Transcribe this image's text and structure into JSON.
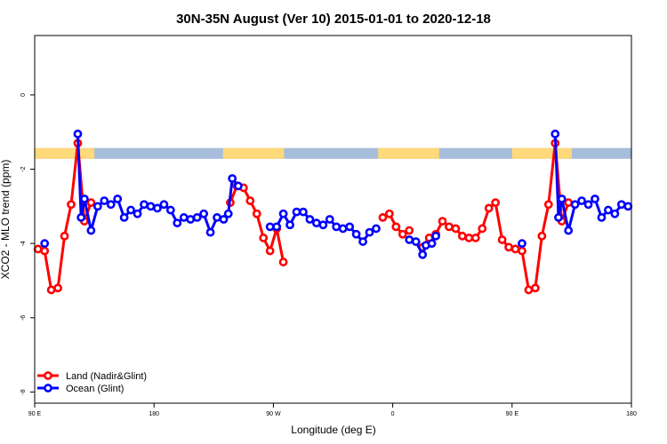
{
  "chart_data": {
    "type": "line",
    "title": "30N-35N August (Ver 10)   2015-01-01 to 2020-12-18",
    "xlabel": "Longitude (deg E)",
    "ylabel": "XCO2 - MLO trend (ppm)",
    "xlim": [
      90,
      540
    ],
    "ylim": [
      -8.3,
      1.6
    ],
    "x_ticks": [
      {
        "value": 90,
        "label": "90 E"
      },
      {
        "value": 180,
        "label": "180"
      },
      {
        "value": 270,
        "label": "90 W"
      },
      {
        "value": 360,
        "label": "0"
      },
      {
        "value": 450,
        "label": "90 E"
      },
      {
        "value": 540,
        "label": "180"
      }
    ],
    "y_ticks": [
      {
        "value": 0,
        "label": "0"
      },
      {
        "value": -2,
        "label": "-2"
      },
      {
        "value": -4,
        "label": "-4"
      },
      {
        "value": -6,
        "label": "-6"
      },
      {
        "value": -8,
        "label": "-8"
      }
    ],
    "grid": false,
    "legend_position": "bottom-left",
    "land_mask": {
      "y_range": [
        -1.72,
        -1.43
      ],
      "land_color": "#FFD97A",
      "ocean_color": "#A6BDDB",
      "land_segments": [
        [
          90,
          135
        ],
        [
          232,
          278
        ],
        [
          349,
          395
        ],
        [
          450,
          495
        ]
      ]
    },
    "series": [
      {
        "name": "Land (Nadir&Glint)",
        "color": "#FF0000",
        "segments": [
          [
            [
              92.5,
              -4.15
            ],
            [
              97.5,
              -4.2
            ],
            [
              102.5,
              -5.25
            ],
            [
              107.5,
              -5.2
            ],
            [
              112.5,
              -3.8
            ],
            [
              117.5,
              -2.95
            ],
            [
              122.5,
              -1.3
            ],
            [
              127.5,
              -3.4
            ],
            [
              132.5,
              -2.9
            ]
          ],
          [
            [
              237.5,
              -2.9
            ],
            [
              242.5,
              -2.45
            ],
            [
              247.5,
              -2.5
            ],
            [
              252.5,
              -2.85
            ],
            [
              257.5,
              -3.2
            ],
            [
              262.5,
              -3.85
            ],
            [
              267.5,
              -4.2
            ],
            [
              272.5,
              -3.6
            ],
            [
              277.5,
              -4.5
            ]
          ],
          [
            [
              352.5,
              -3.3
            ],
            [
              357.5,
              -3.2
            ],
            [
              362.5,
              -3.55
            ],
            [
              367.5,
              -3.75
            ],
            [
              372.5,
              -3.65
            ]
          ],
          [
            [
              382.5,
              -4.1
            ],
            [
              387.5,
              -3.85
            ],
            [
              392.5,
              -3.75
            ],
            [
              397.5,
              -3.4
            ],
            [
              402.5,
              -3.55
            ],
            [
              407.5,
              -3.6
            ],
            [
              412.5,
              -3.8
            ],
            [
              417.5,
              -3.85
            ],
            [
              422.5,
              -3.85
            ],
            [
              427.5,
              -3.6
            ],
            [
              432.5,
              -3.05
            ],
            [
              437.5,
              -2.9
            ],
            [
              442.5,
              -3.9
            ],
            [
              447.5,
              -4.1
            ],
            [
              452.5,
              -4.15
            ],
            [
              457.5,
              -4.2
            ],
            [
              462.5,
              -5.25
            ],
            [
              467.5,
              -5.2
            ],
            [
              472.5,
              -3.8
            ],
            [
              477.5,
              -2.95
            ],
            [
              482.5,
              -1.3
            ],
            [
              487.5,
              -3.4
            ],
            [
              492.5,
              -2.9
            ]
          ]
        ]
      },
      {
        "name": "Ocean (Glint)",
        "color": "#0000FF",
        "segments": [
          [
            [
              97.5,
              -4.0
            ]
          ],
          [
            [
              122.5,
              -1.05
            ],
            [
              125,
              -3.3
            ],
            [
              127.5,
              -2.8
            ],
            [
              132.5,
              -3.65
            ],
            [
              137.5,
              -3.0
            ],
            [
              142.5,
              -2.85
            ],
            [
              147.5,
              -2.95
            ],
            [
              152.5,
              -2.8
            ],
            [
              157.5,
              -3.3
            ],
            [
              162.5,
              -3.1
            ],
            [
              167.5,
              -3.2
            ],
            [
              172.5,
              -2.95
            ],
            [
              177.5,
              -3.0
            ],
            [
              182.5,
              -3.05
            ],
            [
              187.5,
              -2.95
            ],
            [
              192.5,
              -3.1
            ],
            [
              197.5,
              -3.45
            ],
            [
              202.5,
              -3.3
            ],
            [
              207.5,
              -3.35
            ],
            [
              212.5,
              -3.3
            ],
            [
              217.5,
              -3.2
            ],
            [
              222.5,
              -3.7
            ],
            [
              227.5,
              -3.3
            ],
            [
              232.5,
              -3.35
            ],
            [
              236,
              -3.2
            ],
            [
              239,
              -2.25
            ],
            [
              243.5,
              -2.45
            ]
          ],
          [
            [
              267.5,
              -3.55
            ],
            [
              272.5,
              -3.55
            ],
            [
              277.5,
              -3.2
            ],
            [
              282.5,
              -3.5
            ],
            [
              287.5,
              -3.15
            ],
            [
              292.5,
              -3.15
            ],
            [
              297.5,
              -3.35
            ],
            [
              302.5,
              -3.45
            ],
            [
              307.5,
              -3.5
            ],
            [
              312.5,
              -3.35
            ],
            [
              317.5,
              -3.55
            ],
            [
              322.5,
              -3.6
            ],
            [
              327.5,
              -3.55
            ],
            [
              332.5,
              -3.75
            ],
            [
              337.5,
              -3.95
            ],
            [
              342.5,
              -3.7
            ],
            [
              347.5,
              -3.6
            ]
          ],
          [
            [
              372.5,
              -3.9
            ],
            [
              377.5,
              -3.95
            ],
            [
              382.5,
              -4.3
            ],
            [
              385,
              -4.05
            ],
            [
              389.5,
              -4.0
            ],
            [
              392.5,
              -3.8
            ]
          ],
          [
            [
              457.5,
              -4.0
            ]
          ],
          [
            [
              482.5,
              -1.05
            ],
            [
              485,
              -3.3
            ],
            [
              487.5,
              -2.8
            ],
            [
              492.5,
              -3.65
            ],
            [
              497.5,
              -2.95
            ],
            [
              502.5,
              -2.85
            ],
            [
              507.5,
              -2.95
            ],
            [
              512.5,
              -2.8
            ],
            [
              517.5,
              -3.3
            ],
            [
              522.5,
              -3.1
            ],
            [
              527.5,
              -3.2
            ],
            [
              532.5,
              -2.95
            ],
            [
              537.5,
              -3.0
            ]
          ]
        ]
      }
    ]
  }
}
